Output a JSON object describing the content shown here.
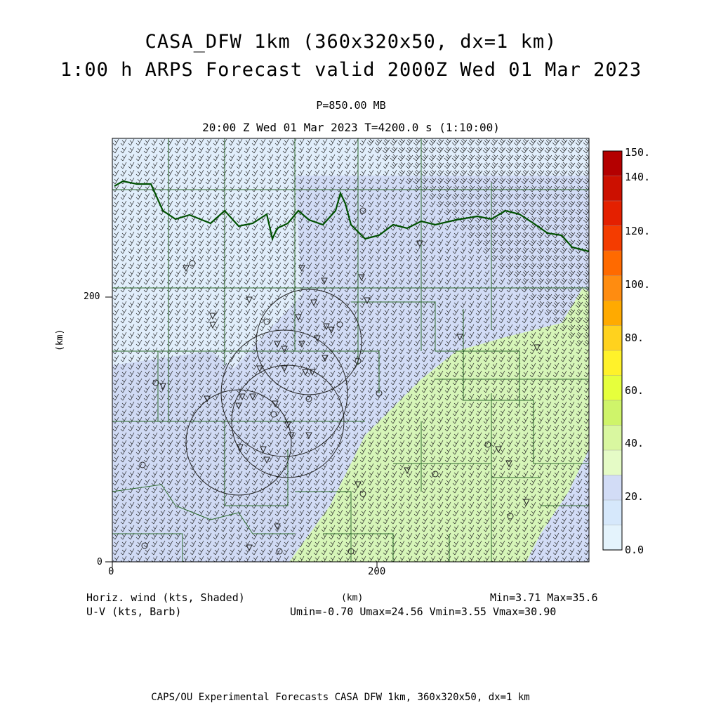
{
  "title_line1": "CASA_DFW 1km (360x320x50, dx=1 km)",
  "title_line2": "1:00 h ARPS Forecast valid 2000Z Wed 01 Mar 2023",
  "pressure_level": "P=850.00 MB",
  "valid_time_line": "20:00 Z Wed 01 Mar 2023   T=4200.0 s (1:10:00)",
  "y_axis": {
    "label": "(km)",
    "ticks": [
      "200",
      "0"
    ]
  },
  "x_axis": {
    "label": "(km)",
    "ticks": [
      "0",
      "200"
    ]
  },
  "footer": {
    "shaded_label": "Horiz. wind (kts, Shaded)",
    "barb_label": "U-V (kts, Barb)",
    "minmax": "Min=3.71 Max=35.6",
    "uv_stats": "Umin=-0.70 Umax=24.56 Vmin=3.55 Vmax=30.90",
    "credit": "CAPS/OU Experimental Forecasts  CASA DFW 1km, 360x320x50, dx=1 km"
  },
  "colorbar": {
    "labels": [
      "150.",
      "140.",
      "120.",
      "100.",
      "80.",
      "60.",
      "40.",
      "20.",
      "0.0"
    ],
    "colors": [
      "#b40000",
      "#cc1000",
      "#e42000",
      "#f43c00",
      "#ff6a00",
      "#ff8c10",
      "#ffaa00",
      "#ffd21e",
      "#fff22a",
      "#e6ff3c",
      "#cff46a",
      "#d9f7a0",
      "#e5fbc6",
      "#d2dcf6",
      "#d6e8fb",
      "#e4f3fc"
    ]
  },
  "map_colors": {
    "light": "#dde8f8",
    "mid": "#cdd8f2",
    "green": "#d4f4b8",
    "boundary": "#005000"
  }
}
